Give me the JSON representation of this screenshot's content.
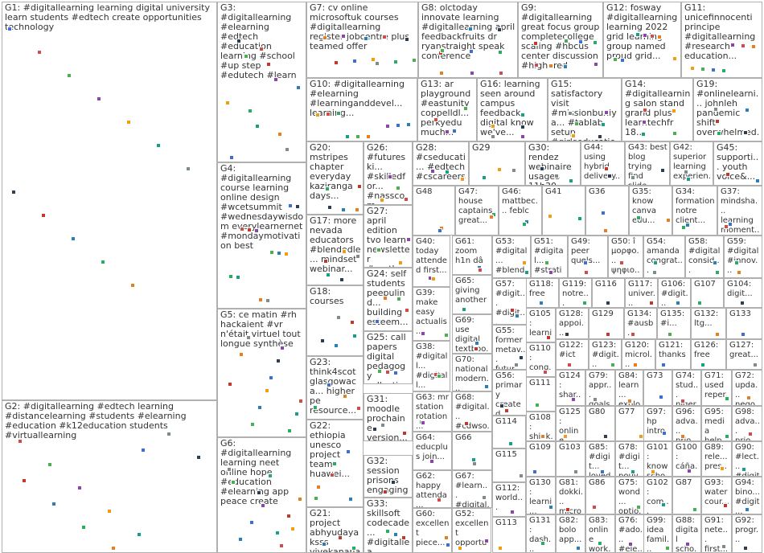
{
  "groups": [
    {
      "id": "G1",
      "label": "G1: #digitallearning learning digital university learn students #edtech create opportunities technology"
    },
    {
      "id": "G2",
      "label": "G2: #digitallearning #edtech learning #distancelearning #students #elearning #education #k12education students #virtuallearning"
    },
    {
      "id": "G3",
      "label": "G3: #digitallearning #elearning #edtech #education learning #school #up step #edutech #learn"
    },
    {
      "id": "G4",
      "label": "G4: #digitallearning course learning online design #wcetsummit #wednesdaywisdom everylearnernet #mondaymotivation best"
    },
    {
      "id": "G5",
      "label": "G5: ce matin #rh hackaient #vr n'était virtuel tout longue synthèse"
    },
    {
      "id": "G6",
      "label": "G6: #digitallearning learning neet online hope #education #elearning app peace create"
    },
    {
      "id": "G7",
      "label": "G7: cv online microsoftuk courses #digitallearning register jobcentre plus teamed offer"
    },
    {
      "id": "G8",
      "label": "G8: olctoday innovate learning #digitallearning april feedbackfruits dr ryanstraight speak conference"
    },
    {
      "id": "G9",
      "label": "G9: #digitallearning great focus group completecollege scaling #hbcus center discussion #highered"
    },
    {
      "id": "G10",
      "label": "G10: #digitallearning #elearning #learninganddevel... learning..."
    },
    {
      "id": "G11",
      "label": "G11: unicefinnocenti principe #digitallearning #research education..."
    },
    {
      "id": "G12",
      "label": "G12: fosway #digitallearning learning 2022 grid learning group named proud grid..."
    },
    {
      "id": "G13",
      "label": "G13: ar playground #eastunity coppelldl... perkyedu much..."
    },
    {
      "id": "G14",
      "label": "G14: #digitallearning salon stand grand plus learntechfr 18..."
    },
    {
      "id": "G15",
      "label": "G15: satisfactory visit #missionbuniya... #tablab setup #girlseducation..."
    },
    {
      "id": "G16",
      "label": "G16: learning seen around campus feedback digital know we've..."
    },
    {
      "id": "G17",
      "label": "G17: more nevada educators #blendedle... mindset webinar..."
    },
    {
      "id": "G18",
      "label": "G18: courses"
    },
    {
      "id": "G19",
      "label": "G19: #onlinelearni... johnleh pandemic shift overwhelmed..."
    },
    {
      "id": "G20",
      "label": "G20: mstripes chapter everyday kaziranga days..."
    },
    {
      "id": "G21",
      "label": "G21: project abhyudaya ksss vivekanana... vikas..."
    },
    {
      "id": "G22",
      "label": "G22: ethiopia unesco project team huawei..."
    },
    {
      "id": "G23",
      "label": "G23: think4scot glasgowaca... higher pe resource..."
    },
    {
      "id": "G24",
      "label": "G24: self students peepulind... building esteem..."
    },
    {
      "id": "G25",
      "label": "G25: call papers digital pedagogy collection..."
    },
    {
      "id": "G26",
      "label": "G26: #futureski... #skilledfor... #nasscom... #digitallea..."
    },
    {
      "id": "G27",
      "label": "G27: april edition tvo learn newsletter #earthmo..."
    },
    {
      "id": "G28",
      "label": "G28: #cseducati... #edtech #cscareers..."
    },
    {
      "id": "G29",
      "label": "G29"
    },
    {
      "id": "G30",
      "label": "G30: rendez webinaire usages 11h30..."
    },
    {
      "id": "G31",
      "label": "G31: moodle prochaine version..."
    },
    {
      "id": "G32",
      "label": "G32: session prisons engaging..."
    },
    {
      "id": "G33",
      "label": "G33: skillsoft codecade... #digitallea..."
    },
    {
      "id": "G34",
      "label": "G34: formation notre client..."
    },
    {
      "id": "G35",
      "label": "G35: know canva edu..."
    },
    {
      "id": "G36",
      "label": "G36"
    },
    {
      "id": "G37",
      "label": "G37: mindsha... learning moment..."
    },
    {
      "id": "G38",
      "label": "G38: #digitall... #digitall... #edchat"
    },
    {
      "id": "G39",
      "label": "G39: make easy actualis..."
    },
    {
      "id": "G40",
      "label": "G40: today attended first..."
    },
    {
      "id": "G41",
      "label": "G41"
    },
    {
      "id": "G42",
      "label": "G42: superior learning experien..."
    },
    {
      "id": "G43",
      "label": "G43: best blog trying find slide..."
    },
    {
      "id": "G44",
      "label": "G44: using hybrid delivery..."
    },
    {
      "id": "G45",
      "label": "G45: supporti... youth voice&..."
    },
    {
      "id": "G46",
      "label": "G46: mattbec... feblc"
    },
    {
      "id": "G47",
      "label": "G47: house captains great..."
    },
    {
      "id": "G48",
      "label": "G48"
    },
    {
      "id": "G49",
      "label": "G49: peer quels..."
    },
    {
      "id": "G50",
      "label": "G50: î μορφο... ψηφιο..."
    },
    {
      "id": "G51",
      "label": "G51: #digital... #stratic..."
    },
    {
      "id": "G52",
      "label": "G52: excellent opportu..."
    },
    {
      "id": "G53",
      "label": "G53: #digital... #blend..."
    },
    {
      "id": "G54",
      "label": "G54: amanda congrat..."
    },
    {
      "id": "G55",
      "label": "G55: former metav... futur..."
    },
    {
      "id": "G56",
      "label": "G56: primary created scratc..."
    },
    {
      "id": "G57",
      "label": "G57: #digit... #digit... digital..."
    },
    {
      "id": "G58",
      "label": "G58: #digital consid..."
    },
    {
      "id": "G59",
      "label": "G59: #digital #innov..."
    },
    {
      "id": "G60",
      "label": "G60: excellent piece..."
    },
    {
      "id": "G61",
      "label": "G61: zoom h1n dâ"
    },
    {
      "id": "G62",
      "label": "G62: happy attenda..."
    },
    {
      "id": "G63",
      "label": "G63: mr station rotation..."
    },
    {
      "id": "G64",
      "label": "G64: educplus join..."
    },
    {
      "id": "G65",
      "label": "G65: giving another"
    },
    {
      "id": "G66",
      "label": "G66"
    },
    {
      "id": "G67",
      "label": "G67: #learn... #digital..."
    },
    {
      "id": "G68",
      "label": "G68: #digital... #cdwso..."
    },
    {
      "id": "G69",
      "label": "G69: use digital textboo..."
    },
    {
      "id": "G70",
      "label": "G70: national modern..."
    },
    {
      "id": "G71",
      "label": "G71: used reper..."
    },
    {
      "id": "G72",
      "label": "G72: upda... nego..."
    },
    {
      "id": "G73",
      "label": "G73"
    },
    {
      "id": "G74",
      "label": "G74: stud... niger... educ..."
    },
    {
      "id": "G75",
      "label": "G75: wond... optio... ende..."
    },
    {
      "id": "G76",
      "label": "G76: #ado... #ele..."
    },
    {
      "id": "G77",
      "label": "G77"
    },
    {
      "id": "G78",
      "label": "G78: #digit... pouv..."
    },
    {
      "id": "G79",
      "label": "G79: appr... goals..."
    },
    {
      "id": "G80",
      "label": "G80"
    },
    {
      "id": "G81",
      "label": "G81: dokki... micro..."
    },
    {
      "id": "G82",
      "label": "G82: bolo app..."
    },
    {
      "id": "G83",
      "label": "G83: online work..."
    },
    {
      "id": "G84",
      "label": "G84: learn... explo..."
    },
    {
      "id": "G85",
      "label": "G85: #digit... loved..."
    },
    {
      "id": "G86",
      "label": "G86"
    },
    {
      "id": "G87",
      "label": "G87"
    },
    {
      "id": "G88",
      "label": "G88: digital scho..."
    },
    {
      "id": "G89",
      "label": "G89: rele... pres..."
    },
    {
      "id": "G90",
      "label": "G90: #lect... #digit..."
    },
    {
      "id": "G91",
      "label": "G91: nete... first..."
    },
    {
      "id": "G92",
      "label": "G92: progr..."
    },
    {
      "id": "G93",
      "label": "G93: water cour..."
    },
    {
      "id": "G94",
      "label": "G94: bino... #digit..."
    },
    {
      "id": "G95",
      "label": "G95: media help..."
    },
    {
      "id": "G96",
      "label": "G96: adva... prio..."
    },
    {
      "id": "G97",
      "label": "G97: hp intro..."
    },
    {
      "id": "G98",
      "label": "G98: adva... prio..."
    },
    {
      "id": "G99",
      "label": "G99: idea famil..."
    },
    {
      "id": "G100",
      "label": "G100: cáña... cult..."
    },
    {
      "id": "G101",
      "label": "G101: know scho..."
    },
    {
      "id": "G102",
      "label": "G102: com... #fran..."
    },
    {
      "id": "G103",
      "label": "G103"
    },
    {
      "id": "G104",
      "label": "G104: digit..."
    },
    {
      "id": "G105",
      "label": "G105: learni... digita..."
    },
    {
      "id": "G106",
      "label": "G106: #digit..."
    },
    {
      "id": "G107",
      "label": "G107"
    },
    {
      "id": "G108",
      "label": "G108: shink... edge..."
    },
    {
      "id": "G109",
      "label": "G109"
    },
    {
      "id": "G110",
      "label": "G110: cong... emm..."
    },
    {
      "id": "G111",
      "label": "G111"
    },
    {
      "id": "G112",
      "label": "G112: world..."
    },
    {
      "id": "G113",
      "label": "G113"
    },
    {
      "id": "G114",
      "label": "G114"
    },
    {
      "id": "G115",
      "label": "G115"
    },
    {
      "id": "G116",
      "label": "G116"
    },
    {
      "id": "G117",
      "label": "G117: univer..."
    },
    {
      "id": "G118",
      "label": "G118: free"
    },
    {
      "id": "G119",
      "label": "G119: notre..."
    },
    {
      "id": "G120",
      "label": "G120: microl..."
    },
    {
      "id": "G121",
      "label": "G121: thanks"
    },
    {
      "id": "G122",
      "label": "G122: #ict"
    },
    {
      "id": "G123",
      "label": "G123: #digit..."
    },
    {
      "id": "G124",
      "label": "G124: shar... skills..."
    },
    {
      "id": "G125",
      "label": "G125: online learni... skills..."
    },
    {
      "id": "G126",
      "label": "G126: free"
    },
    {
      "id": "G127",
      "label": "G127: great..."
    },
    {
      "id": "G128",
      "label": "G128: appoi..."
    },
    {
      "id": "G129",
      "label": "G129"
    },
    {
      "id": "G130",
      "label": "G130: learni... world..."
    },
    {
      "id": "G131",
      "label": "G131: dash... enga..."
    },
    {
      "id": "G132",
      "label": "G132: ltg..."
    },
    {
      "id": "G133",
      "label": "G133"
    },
    {
      "id": "G134",
      "label": "G134: #ausb..."
    },
    {
      "id": "G135",
      "label": "G135: #i..."
    }
  ]
}
